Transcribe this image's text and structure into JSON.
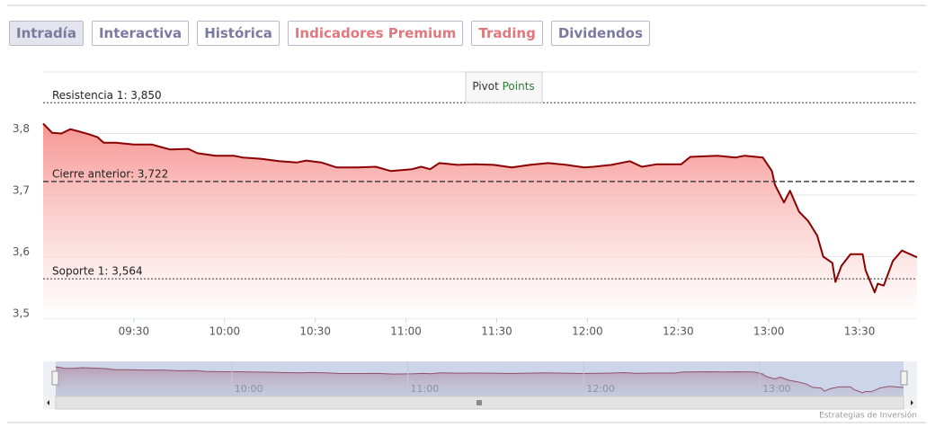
{
  "tabs": [
    {
      "label": "Intradía",
      "color": "#7b7aa0",
      "active": true
    },
    {
      "label": "Interactiva",
      "color": "#7b7aa0",
      "active": false
    },
    {
      "label": "Histórica",
      "color": "#7b7aa0",
      "active": false
    },
    {
      "label": "Indicadores Premium",
      "color": "#e0787e",
      "active": false
    },
    {
      "label": "Trading",
      "color": "#e0787e",
      "active": false
    },
    {
      "label": "Dividendos",
      "color": "#7b7aa0",
      "active": false
    }
  ],
  "chart_data": {
    "type": "area",
    "color": "#8b0000",
    "x": [
      "09:00",
      "09:03",
      "09:06",
      "09:09",
      "09:12",
      "09:15",
      "09:18",
      "09:20",
      "09:24",
      "09:30",
      "09:36",
      "09:39",
      "09:42",
      "09:48",
      "09:51",
      "09:57",
      "10:03",
      "10:06",
      "10:12",
      "10:18",
      "10:24",
      "10:27",
      "10:32",
      "10:37",
      "10:44",
      "10:50",
      "10:55",
      "11:02",
      "11:05",
      "11:08",
      "11:11",
      "11:17",
      "11:23",
      "11:29",
      "11:35",
      "11:41",
      "11:47",
      "11:53",
      "11:59",
      "12:02",
      "12:08",
      "12:14",
      "12:18",
      "12:23",
      "12:31",
      "12:34",
      "12:43",
      "12:49",
      "12:52",
      "12:58",
      "13:01",
      "13:02",
      "13:05",
      "13:07",
      "13:10",
      "13:13",
      "13:16",
      "13:18",
      "13:21",
      "13:22",
      "13:24",
      "13:27",
      "13:31",
      "13:32",
      "13:35",
      "13:36",
      "13:38",
      "13:41",
      "13:44",
      "13:49"
    ],
    "values": [
      3.816,
      3.801,
      3.8,
      3.807,
      3.803,
      3.799,
      3.794,
      3.785,
      3.785,
      3.782,
      3.782,
      3.778,
      3.774,
      3.775,
      3.768,
      3.764,
      3.764,
      3.761,
      3.759,
      3.755,
      3.753,
      3.756,
      3.753,
      3.745,
      3.745,
      3.746,
      3.739,
      3.742,
      3.746,
      3.742,
      3.752,
      3.749,
      3.75,
      3.749,
      3.745,
      3.749,
      3.752,
      3.749,
      3.745,
      3.746,
      3.749,
      3.755,
      3.746,
      3.75,
      3.75,
      3.762,
      3.764,
      3.761,
      3.764,
      3.761,
      3.739,
      3.717,
      3.688,
      3.707,
      3.673,
      3.658,
      3.634,
      3.6,
      3.59,
      3.559,
      3.585,
      3.604,
      3.604,
      3.578,
      3.542,
      3.556,
      3.553,
      3.593,
      3.61,
      3.599
    ],
    "xlim": [
      "09:00",
      "13:49"
    ],
    "xticks": [
      "09:30",
      "10:00",
      "10:30",
      "11:00",
      "11:30",
      "12:00",
      "12:30",
      "13:00",
      "13:30"
    ],
    "ylim": [
      3.5,
      3.9
    ],
    "yticks": [
      {
        "value": 3.5,
        "label": "3,5"
      },
      {
        "value": 3.6,
        "label": "3,6"
      },
      {
        "value": 3.7,
        "label": "3,7"
      },
      {
        "value": 3.8,
        "label": "3,8"
      }
    ],
    "grid": true,
    "annotations": [
      {
        "text": "Resistencia 1: 3,850",
        "value": 3.85,
        "style": "dotted"
      },
      {
        "text": "Cierre anterior: 3,722",
        "value": 3.722,
        "style": "dashed"
      },
      {
        "text": "Soporte 1: 3,564",
        "value": 3.564,
        "style": "dotted"
      }
    ],
    "pivot_button": [
      "Pivot",
      "Points"
    ],
    "navigator_xticks": [
      "10:00",
      "11:00",
      "12:00",
      "13:00"
    ]
  },
  "credit": "Estrategias de Inversión"
}
